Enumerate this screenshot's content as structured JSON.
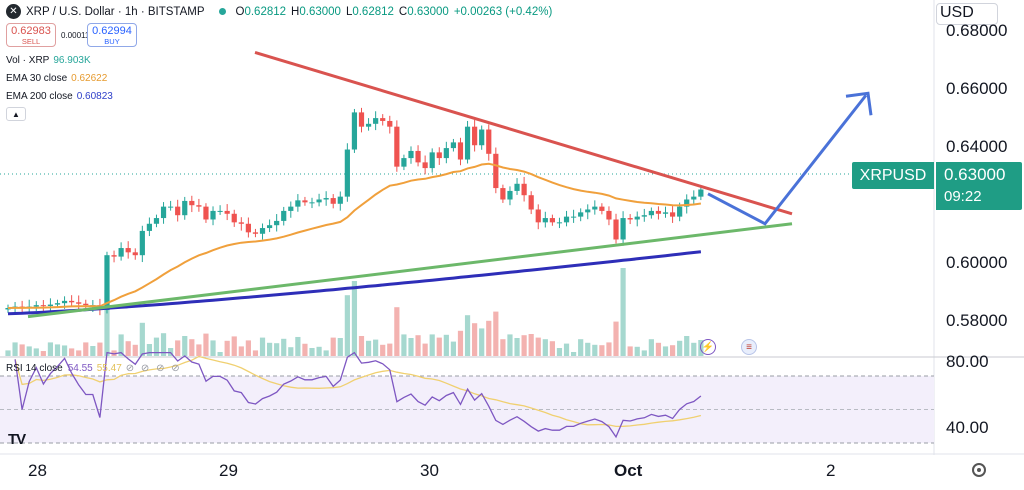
{
  "header": {
    "symbol_title": "XRP / U.S. Dollar · 1h · BITSTAMP",
    "ohlc": [
      {
        "k": "O",
        "v": "0.62812"
      },
      {
        "k": "H",
        "v": "0.63000"
      },
      {
        "k": "L",
        "v": "0.62812"
      },
      {
        "k": "C",
        "v": "0.63000"
      }
    ],
    "change": "+0.00263 (+0.42%)",
    "logo_icon": "xrp-logo-icon",
    "status_dot_color": "#26a69a"
  },
  "trade": {
    "sell_price": "0.62983",
    "sell_label": "SELL",
    "spread": "0.00011",
    "buy_price": "0.62994",
    "buy_label": "BUY"
  },
  "indicators": {
    "vol_label": "Vol · XRP",
    "vol_value": "96.903K",
    "ema30_label": "EMA 30 close",
    "ema30_value": "0.62622",
    "ema200_label": "EMA 200 close",
    "ema200_value": "0.60823",
    "collapse_icon": "chevron-up-icon"
  },
  "price_axis": {
    "currency": "USD",
    "current_symbol": "XRPUSD",
    "current_price": "0.63000",
    "countdown": "09:22",
    "labels": [
      "0.68000",
      "0.66000",
      "0.64000",
      "0.62000",
      "0.60000",
      "0.58000"
    ]
  },
  "rsi": {
    "label": "RSI 14 close",
    "value": "54.55",
    "ma_value": "55.47",
    "circles": "⊘ ⊘ ⊘ ⊘",
    "axis_labels": [
      "80.00",
      "40.00"
    ]
  },
  "time_axis": {
    "labels": [
      "28",
      "29",
      "30",
      "Oct",
      "2"
    ]
  },
  "branding": {
    "logo_text": "TV"
  },
  "colors": {
    "up": "#26a69a",
    "down": "#ef5350",
    "ema30": "#f0a03c",
    "ema200": "#2e2eb8",
    "resistance": "#d9534f",
    "support": "#6cb86a",
    "projection": "#4a72d8",
    "rsi": "#7e57c2",
    "rsi_ma": "#f0d070"
  },
  "chart_data": {
    "type": "line",
    "title": "XRP / U.S. Dollar · 1h · BITSTAMP",
    "xlabel": "",
    "ylabel": "",
    "ylim": [
      0.5745,
      0.6855
    ],
    "yticks": [
      0.68,
      0.66,
      0.64,
      0.62,
      0.6,
      0.58
    ],
    "x_ticks": [
      "28",
      "29",
      "30",
      "Oct",
      "2"
    ],
    "grid": false,
    "candles_close": [
      0.5885,
      0.589,
      0.5885,
      0.589,
      0.5895,
      0.5892,
      0.5897,
      0.5902,
      0.591,
      0.5905,
      0.59,
      0.5895,
      0.5895,
      0.5878,
      0.607,
      0.6065,
      0.6095,
      0.608,
      0.607,
      0.6155,
      0.618,
      0.62,
      0.624,
      0.624,
      0.621,
      0.626,
      0.6245,
      0.624,
      0.6195,
      0.6225,
      0.6225,
      0.6215,
      0.6185,
      0.618,
      0.615,
      0.6145,
      0.6165,
      0.6175,
      0.619,
      0.6225,
      0.624,
      0.6262,
      0.6255,
      0.6255,
      0.6265,
      0.627,
      0.625,
      0.6275,
      0.644,
      0.657,
      0.652,
      0.653,
      0.655,
      0.654,
      0.652,
      0.638,
      0.641,
      0.6435,
      0.6395,
      0.6375,
      0.643,
      0.641,
      0.6445,
      0.6465,
      0.6405,
      0.652,
      0.6455,
      0.651,
      0.6425,
      0.6305,
      0.6265,
      0.6295,
      0.632,
      0.628,
      0.623,
      0.6185,
      0.62,
      0.6185,
      0.6185,
      0.6205,
      0.6205,
      0.622,
      0.623,
      0.624,
      0.6225,
      0.6195,
      0.6125,
      0.62,
      0.6195,
      0.6205,
      0.621,
      0.6225,
      0.6215,
      0.622,
      0.6205,
      0.624,
      0.6265,
      0.6275,
      0.63
    ],
    "series": [
      {
        "name": "EMA 30 close",
        "last_value": 0.62622
      },
      {
        "name": "EMA 200 close",
        "last_value": 0.60823
      }
    ],
    "trendlines": [
      {
        "kind": "resistance",
        "from": 0.678,
        "to": 0.6215
      },
      {
        "kind": "support",
        "from": 0.5855,
        "to": 0.618
      },
      {
        "kind": "projection",
        "points": [
          0.6285,
          0.618,
          0.663
        ]
      }
    ],
    "volume_panel": {
      "label": "Vol · XRP",
      "last": "96.903K"
    },
    "rsi_panel": {
      "label": "RSI 14 close",
      "value": 54.55,
      "ma": 55.47,
      "levels": [
        70,
        50,
        30
      ],
      "ticks": [
        80,
        40
      ]
    }
  }
}
